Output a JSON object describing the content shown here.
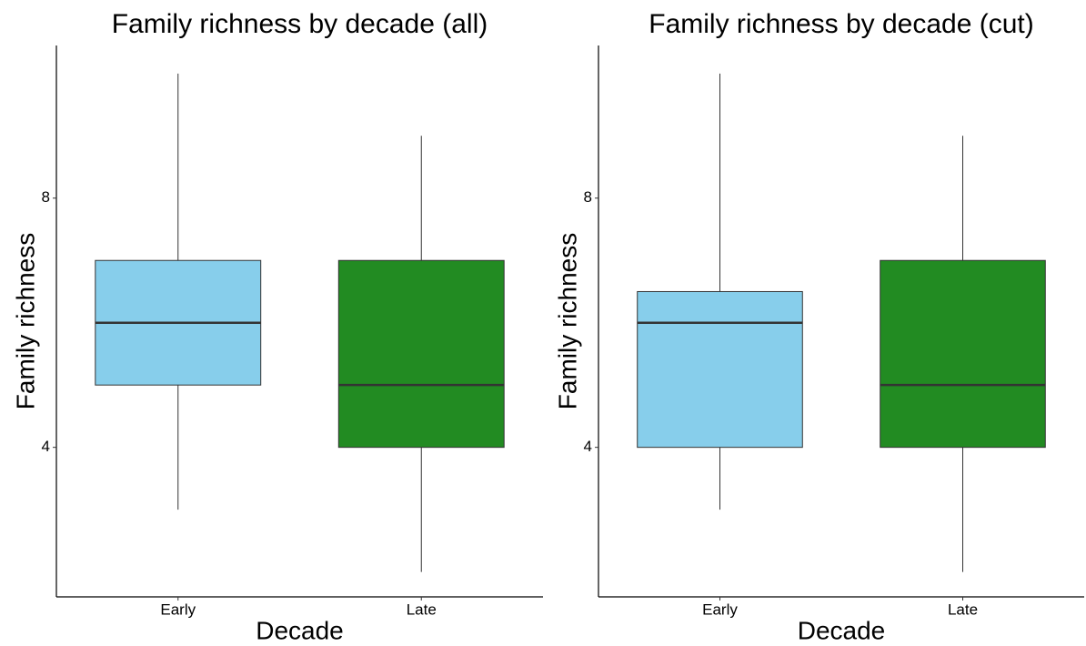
{
  "chart_data": [
    {
      "type": "box",
      "title": "Family richness by decade (all)",
      "x_label": "Decade",
      "y_label": "Family richness",
      "categories": [
        "Early",
        "Late"
      ],
      "boxes": [
        {
          "color": "#87ceeb",
          "min": 3,
          "q1": 5,
          "median": 6,
          "q3": 7,
          "max": 10
        },
        {
          "color": "#228b22",
          "min": 2,
          "q1": 4,
          "median": 5,
          "q3": 7,
          "max": 9
        }
      ],
      "ylim": [
        1.6,
        10.45
      ],
      "yticks": [
        4,
        8
      ]
    },
    {
      "type": "box",
      "title": "Family richness by decade (cut)",
      "x_label": "Decade",
      "y_label": "Family richness",
      "categories": [
        "Early",
        "Late"
      ],
      "boxes": [
        {
          "color": "#87ceeb",
          "min": 3,
          "q1": 4,
          "median": 6,
          "q3": 6.5,
          "max": 10
        },
        {
          "color": "#228b22",
          "min": 2,
          "q1": 4,
          "median": 5,
          "q3": 7,
          "max": 9
        }
      ],
      "ylim": [
        1.6,
        10.45
      ],
      "yticks": [
        4,
        8
      ]
    }
  ]
}
